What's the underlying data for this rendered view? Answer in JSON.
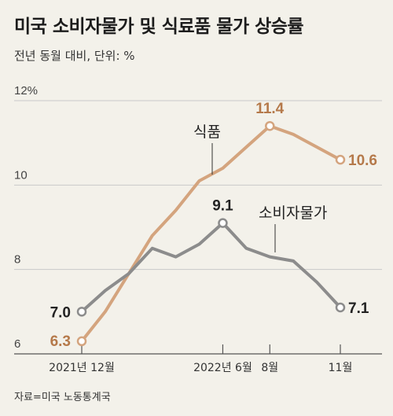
{
  "title": "미국 소비자물가 및 식료품 물가 상승률",
  "subtitle": "전년 동월 대비, 단위: %",
  "source": "자료=미국 노동통계국",
  "colors": {
    "food": "#d4a47e",
    "food_label": "#b5794a",
    "cpi": "#8c8c8c",
    "cpi_label": "#222222",
    "grid": "#c9c9c9"
  },
  "chart_data": {
    "type": "line",
    "x": [
      "2021-12",
      "2022-01",
      "2022-02",
      "2022-03",
      "2022-04",
      "2022-05",
      "2022-06",
      "2022-07",
      "2022-08",
      "2022-09",
      "2022-10",
      "2022-11"
    ],
    "ylim": [
      6,
      12
    ],
    "yticks": [
      {
        "value": 12,
        "label": "12%"
      },
      {
        "value": 10,
        "label": "10"
      },
      {
        "value": 8,
        "label": "8"
      },
      {
        "value": 6,
        "label": "6"
      }
    ],
    "xticks": [
      {
        "index": 0,
        "label": "2021년 12월"
      },
      {
        "index": 6,
        "label": "2022년 6월"
      },
      {
        "index": 8,
        "label": "8월"
      },
      {
        "index": 11,
        "label": "11월"
      }
    ],
    "grid": true,
    "series": [
      {
        "name": "식품",
        "values": [
          6.3,
          7.0,
          7.9,
          8.8,
          9.4,
          10.1,
          10.4,
          10.9,
          11.4,
          11.2,
          10.9,
          10.6
        ],
        "annotations": [
          {
            "index": 0,
            "label": "6.3"
          },
          {
            "index": 8,
            "label": "11.4"
          },
          {
            "index": 11,
            "label": "10.6"
          }
        ]
      },
      {
        "name": "소비자물가",
        "values": [
          7.0,
          7.5,
          7.9,
          8.5,
          8.3,
          8.6,
          9.1,
          8.5,
          8.3,
          8.2,
          7.7,
          7.1
        ],
        "annotations": [
          {
            "index": 0,
            "label": "7.0"
          },
          {
            "index": 6,
            "label": "9.1"
          },
          {
            "index": 11,
            "label": "7.1"
          }
        ]
      }
    ]
  }
}
